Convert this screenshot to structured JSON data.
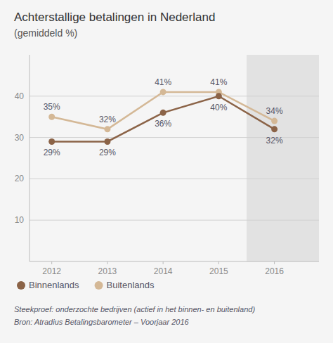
{
  "chart_data": {
    "type": "line",
    "title": "Achterstallige betalingen in Nederland",
    "subtitle": "(gemiddeld %)",
    "x": [
      2012,
      2013,
      2014,
      2015,
      2016
    ],
    "xlim": [
      2011.6,
      2016.8
    ],
    "xticks": [
      2012,
      2013,
      2014,
      2015,
      2016
    ],
    "ylim": [
      0,
      50
    ],
    "yticks": [
      10,
      20,
      30,
      40
    ],
    "grid": true,
    "legend": "bottom",
    "data_labels": true,
    "series": [
      {
        "name": "Binnenlands",
        "color": "#8B6347",
        "values": [
          29,
          29,
          36,
          40,
          32
        ],
        "value_labels": [
          "29%",
          "29%",
          "36%",
          "40%",
          "32%"
        ]
      },
      {
        "name": "Buitenlands",
        "color": "#D4B896",
        "values": [
          35,
          32,
          41,
          41,
          34
        ],
        "value_labels": [
          "35%",
          "32%",
          "41%",
          "41%",
          "34%"
        ]
      }
    ],
    "annotations": [
      "Steekproef: onderzochte bedrijven (actief in het binnen- en buitenland)",
      "Bron: Atradius Betalingsbarometer – Voorjaar 2016"
    ]
  }
}
